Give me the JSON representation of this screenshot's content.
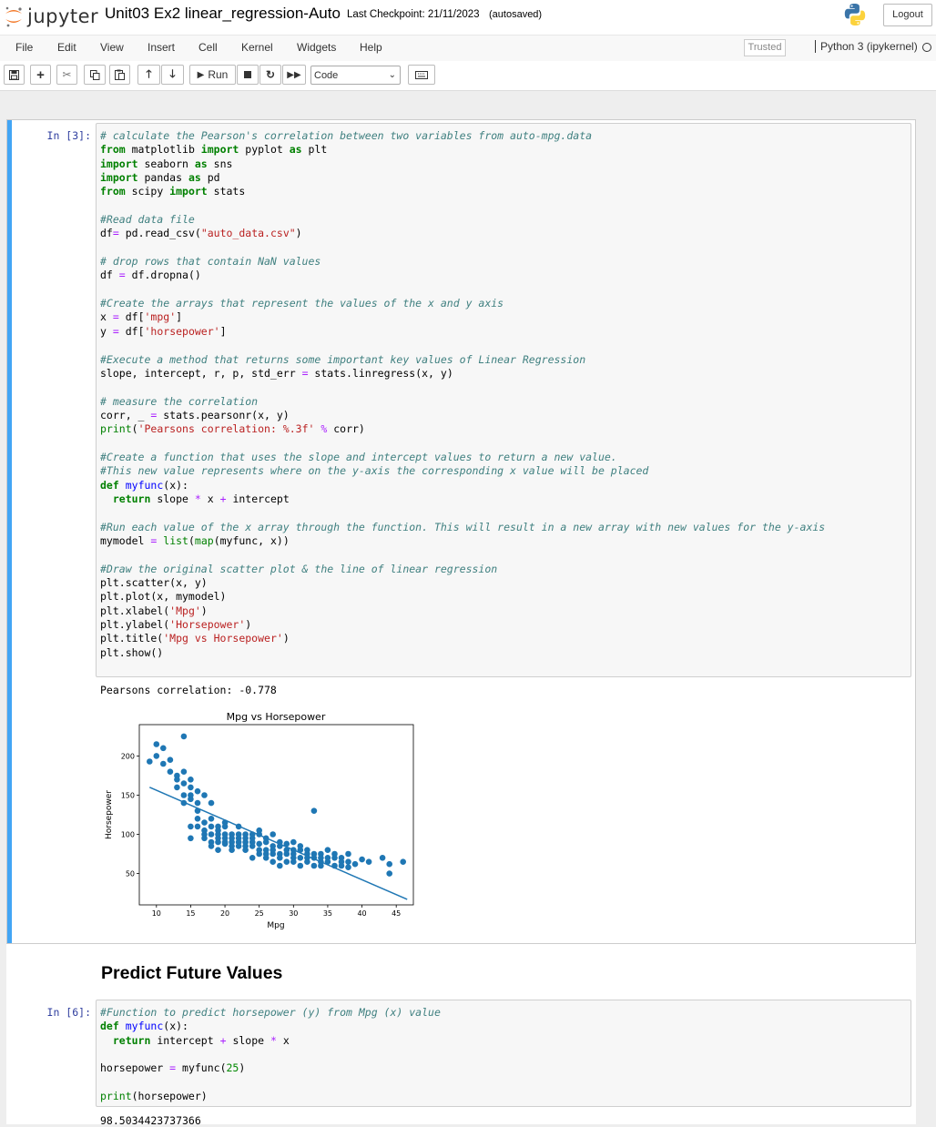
{
  "header": {
    "logo_text": "jupyter",
    "notebook_title": "Unit03 Ex2 linear_regression-Auto",
    "checkpoint": "Last Checkpoint: 21/11/2023",
    "autosaved": "(autosaved)",
    "logout_label": "Logout"
  },
  "menubar": {
    "items": [
      "File",
      "Edit",
      "View",
      "Insert",
      "Cell",
      "Kernel",
      "Widgets",
      "Help"
    ],
    "trusted": "Trusted",
    "kernel": "Python 3 (ipykernel)"
  },
  "toolbar": {
    "run_label": "Run",
    "cell_type": "Code",
    "icons": [
      "save-icon",
      "add-cell-icon",
      "cut-icon",
      "copy-icon",
      "paste-icon",
      "move-up-icon",
      "move-down-icon",
      "run-icon",
      "stop-icon",
      "restart-icon",
      "fast-forward-icon",
      "keyboard-icon"
    ]
  },
  "cell1": {
    "prompt": "In [3]:",
    "output_text": "Pearsons correlation: -0.778"
  },
  "markdown": {
    "heading": "Predict Future Values"
  },
  "cell2": {
    "prompt": "In [6]:",
    "output_text": "98.5034423737366"
  },
  "chart_data": {
    "type": "scatter",
    "title": "Mpg vs Horsepower",
    "xlabel": "Mpg",
    "ylabel": "Horsepower",
    "xlim": [
      7.5,
      47.5
    ],
    "ylim": [
      10,
      240
    ],
    "x_ticks": [
      10,
      15,
      20,
      25,
      30,
      35,
      40,
      45
    ],
    "y_ticks": [
      50,
      100,
      150,
      200
    ],
    "grid": false,
    "colors": {
      "points": "#1f77b4",
      "line": "#1f77b4"
    },
    "regression_line": {
      "x": [
        9,
        46.6
      ],
      "y": [
        160,
        17
      ]
    },
    "series": [
      {
        "x": [
          9,
          10,
          10,
          11,
          11,
          12,
          12,
          13,
          13,
          13,
          14,
          14,
          14,
          14,
          14,
          15,
          15,
          15,
          15,
          15,
          15,
          16,
          16,
          16,
          16,
          16,
          17,
          17,
          17,
          17,
          17,
          18,
          18,
          18,
          18,
          18,
          18,
          19,
          19,
          19,
          19,
          19,
          19,
          20,
          20,
          20,
          20,
          20,
          20,
          21,
          21,
          21,
          21,
          21,
          22,
          22,
          22,
          22,
          22,
          23,
          23,
          23,
          23,
          23,
          24,
          24,
          24,
          24,
          24,
          25,
          25,
          25,
          25,
          25,
          26,
          26,
          26,
          26,
          26,
          27,
          27,
          27,
          27,
          27,
          28,
          28,
          28,
          28,
          28,
          29,
          29,
          29,
          29,
          30,
          30,
          30,
          30,
          30,
          31,
          31,
          31,
          31,
          32,
          32,
          32,
          32,
          33,
          33,
          33,
          33,
          34,
          34,
          34,
          34,
          35,
          35,
          35,
          36,
          36,
          36,
          37,
          37,
          37,
          38,
          38,
          38,
          39,
          40,
          41,
          43,
          44,
          44,
          46
        ],
        "y": [
          193,
          215,
          200,
          190,
          210,
          180,
          195,
          170,
          160,
          175,
          150,
          165,
          180,
          140,
          225,
          145,
          160,
          170,
          150,
          95,
          110,
          155,
          140,
          130,
          120,
          110,
          150,
          115,
          100,
          95,
          105,
          140,
          110,
          100,
          90,
          120,
          85,
          110,
          95,
          90,
          105,
          100,
          80,
          115,
          95,
          88,
          100,
          110,
          90,
          100,
          90,
          85,
          95,
          80,
          100,
          85,
          95,
          110,
          90,
          90,
          100,
          85,
          80,
          95,
          95,
          85,
          90,
          70,
          100,
          80,
          88,
          100,
          75,
          105,
          80,
          90,
          75,
          95,
          70,
          85,
          75,
          65,
          100,
          80,
          75,
          85,
          70,
          90,
          60,
          75,
          80,
          65,
          88,
          70,
          80,
          90,
          65,
          75,
          70,
          80,
          60,
          85,
          75,
          65,
          80,
          70,
          70,
          75,
          130,
          60,
          75,
          70,
          65,
          60,
          70,
          65,
          80,
          70,
          60,
          75,
          65,
          60,
          70,
          65,
          58,
          75,
          62,
          68,
          65,
          70,
          50,
          62,
          65
        ]
      }
    ]
  }
}
